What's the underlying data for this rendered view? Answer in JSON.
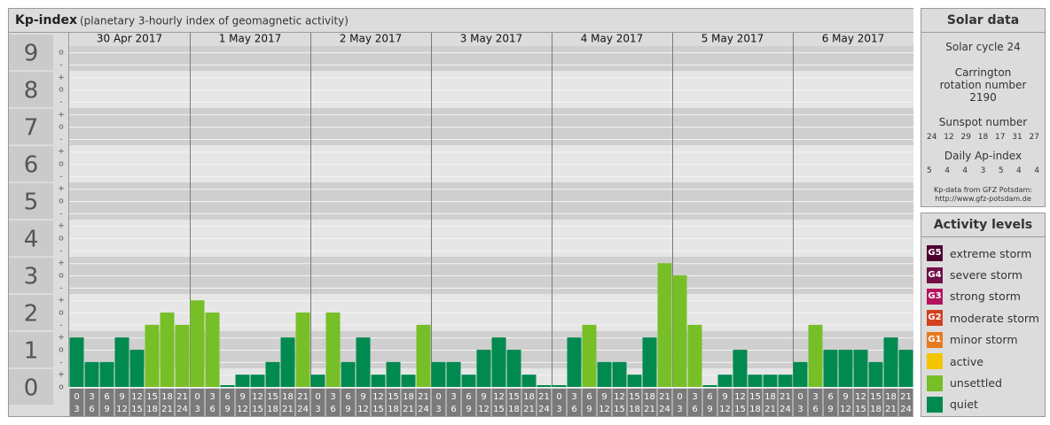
{
  "chart_data": {
    "type": "bar",
    "title": "Kp-index",
    "subtitle": "(planetary 3-hourly index of geomagnetic activity)",
    "ylim": [
      0,
      9.17
    ],
    "yticks": [
      0,
      1,
      2,
      3,
      4,
      5,
      6,
      7,
      8,
      9
    ],
    "yminor": [
      {
        "value": 0,
        "label": "o"
      },
      {
        "value": 0.33,
        "label": "+"
      },
      {
        "value": 0.67,
        "label": "-"
      },
      {
        "value": 1,
        "label": "o"
      },
      {
        "value": 1.33,
        "label": "+"
      },
      {
        "value": 1.67,
        "label": "-"
      },
      {
        "value": 2,
        "label": "o"
      },
      {
        "value": 2.33,
        "label": "+"
      },
      {
        "value": 2.67,
        "label": "-"
      },
      {
        "value": 3,
        "label": "o"
      },
      {
        "value": 3.33,
        "label": "+"
      },
      {
        "value": 3.67,
        "label": "-"
      },
      {
        "value": 4,
        "label": "o"
      },
      {
        "value": 4.33,
        "label": "+"
      },
      {
        "value": 4.67,
        "label": "-"
      },
      {
        "value": 5,
        "label": "o"
      },
      {
        "value": 5.33,
        "label": "+"
      },
      {
        "value": 5.67,
        "label": "-"
      },
      {
        "value": 6,
        "label": "o"
      },
      {
        "value": 6.33,
        "label": "+"
      },
      {
        "value": 6.67,
        "label": "-"
      },
      {
        "value": 7,
        "label": "o"
      },
      {
        "value": 7.33,
        "label": "+"
      },
      {
        "value": 7.67,
        "label": "-"
      },
      {
        "value": 8,
        "label": "o"
      },
      {
        "value": 8.33,
        "label": "+"
      },
      {
        "value": 8.67,
        "label": "-"
      },
      {
        "value": 9,
        "label": "o"
      }
    ],
    "hour_labels": [
      {
        "start": "0",
        "end": "3"
      },
      {
        "start": "3",
        "end": "6"
      },
      {
        "start": "6",
        "end": "9"
      },
      {
        "start": "9",
        "end": "12"
      },
      {
        "start": "12",
        "end": "15"
      },
      {
        "start": "15",
        "end": "18"
      },
      {
        "start": "18",
        "end": "21"
      },
      {
        "start": "21",
        "end": "24"
      }
    ],
    "days": [
      {
        "label": "30 Apr 2017",
        "values": [
          1.33,
          0.67,
          0.67,
          1.33,
          1,
          1.67,
          2,
          1.67
        ],
        "colors": [
          "#008a4f",
          "#008a4f",
          "#008a4f",
          "#008a4f",
          "#008a4f",
          "#77bf26",
          "#77bf26",
          "#77bf26"
        ]
      },
      {
        "label": "1 May 2017",
        "values": [
          2.33,
          2,
          0,
          0.33,
          0.33,
          0.67,
          1.33,
          2
        ],
        "colors": [
          "#77bf26",
          "#77bf26",
          "#008a4f",
          "#008a4f",
          "#008a4f",
          "#008a4f",
          "#008a4f",
          "#77bf26"
        ]
      },
      {
        "label": "2 May 2017",
        "values": [
          0.33,
          2,
          0.67,
          1.33,
          0.33,
          0.67,
          0.33,
          1.67
        ],
        "colors": [
          "#008a4f",
          "#77bf26",
          "#008a4f",
          "#008a4f",
          "#008a4f",
          "#008a4f",
          "#008a4f",
          "#77bf26"
        ]
      },
      {
        "label": "3 May 2017",
        "values": [
          0.67,
          0.67,
          0.33,
          1,
          1.33,
          1,
          0.33,
          0
        ],
        "colors": [
          "#008a4f",
          "#008a4f",
          "#008a4f",
          "#008a4f",
          "#008a4f",
          "#008a4f",
          "#008a4f",
          "#008a4f"
        ]
      },
      {
        "label": "4 May 2017",
        "values": [
          0,
          1.33,
          1.67,
          0.67,
          0.67,
          0.33,
          1.33,
          3.33
        ],
        "colors": [
          "#008a4f",
          "#008a4f",
          "#77bf26",
          "#008a4f",
          "#008a4f",
          "#008a4f",
          "#008a4f",
          "#77bf26"
        ]
      },
      {
        "label": "5 May 2017",
        "values": [
          3,
          1.67,
          0,
          0.33,
          1,
          0.33,
          0.33,
          0.33
        ],
        "colors": [
          "#77bf26",
          "#77bf26",
          "#008a4f",
          "#008a4f",
          "#008a4f",
          "#008a4f",
          "#008a4f",
          "#008a4f"
        ]
      },
      {
        "label": "6 May 2017",
        "values": [
          0.67,
          1.67,
          1,
          1,
          1,
          0.67,
          1.33,
          1
        ],
        "colors": [
          "#008a4f",
          "#77bf26",
          "#008a4f",
          "#008a4f",
          "#008a4f",
          "#008a4f",
          "#008a4f",
          "#008a4f"
        ]
      }
    ]
  },
  "solar_data": {
    "title": "Solar data",
    "cycle": "Solar cycle 24",
    "carrington": "Carrington rotation number 2190",
    "sunspot_title": "Sunspot number",
    "sunspots": [
      "24",
      "12",
      "29",
      "18",
      "17",
      "31",
      "27"
    ],
    "ap_title": "Daily Ap-index",
    "ap": [
      "5",
      "4",
      "4",
      "3",
      "5",
      "4",
      "4"
    ],
    "source": "Kp-data from GFZ Potsdam:",
    "url": "http://www.gfz-potsdam.de"
  },
  "activity_levels": {
    "title": "Activity levels",
    "items": [
      {
        "code": "G5",
        "label": "extreme storm",
        "color": "#4d0030"
      },
      {
        "code": "G4",
        "label": "severe storm",
        "color": "#700f48"
      },
      {
        "code": "G3",
        "label": "strong storm",
        "color": "#b3135f"
      },
      {
        "code": "G2",
        "label": "moderate storm",
        "color": "#d2401f"
      },
      {
        "code": "G1",
        "label": "minor storm",
        "color": "#e6791e"
      },
      {
        "label": "active",
        "color": "#f5c400"
      },
      {
        "label": "unsettled",
        "color": "#77bf26"
      },
      {
        "label": "quiet",
        "color": "#008a4f"
      }
    ]
  }
}
